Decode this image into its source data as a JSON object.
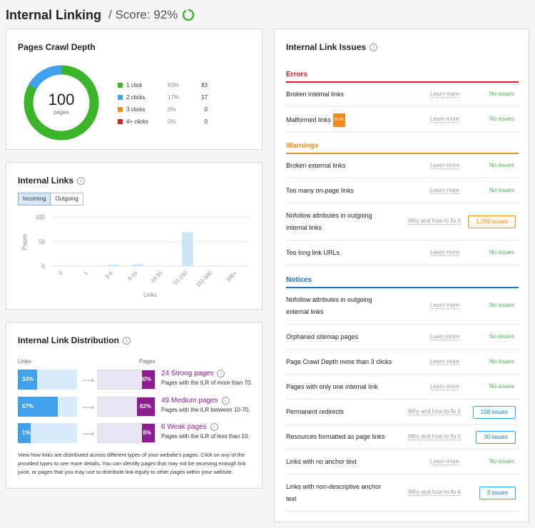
{
  "header": {
    "title": "Internal Linking",
    "score_label": "/ Score: 92%",
    "score_value": 92,
    "accent": "#3cb52b"
  },
  "crawl": {
    "title": "Pages Crawl Depth",
    "total": "100",
    "total_label": "pages",
    "items": [
      {
        "label": "1 click",
        "pct": "83%",
        "count": "83",
        "value": 83,
        "color": "#3cb52b"
      },
      {
        "label": "2 clicks",
        "pct": "17%",
        "count": "17",
        "value": 17,
        "color": "#3fa0ee"
      },
      {
        "label": "3 clicks",
        "pct": "0%",
        "count": "0",
        "value": 0,
        "color": "#f08c1e"
      },
      {
        "label": "4+ clicks",
        "pct": "0%",
        "count": "0",
        "value": 0,
        "color": "#d92020"
      }
    ]
  },
  "links": {
    "title": "Internal Links",
    "tabs": [
      {
        "label": "Incoming",
        "active": true
      },
      {
        "label": "Outgoing",
        "active": false
      }
    ],
    "chart_data": {
      "type": "bar",
      "categories": [
        "0",
        "1",
        "2-5",
        "6-15",
        "16-50",
        "51-150",
        "151-500",
        "500+"
      ],
      "values": [
        0,
        0,
        3,
        4,
        0,
        69,
        0,
        0
      ],
      "xlabel": "Links",
      "ylabel": "Pages",
      "ylim": [
        0,
        100
      ],
      "yticks": [
        "0",
        "50",
        "100"
      ],
      "grid": true,
      "color": "#cde5f7"
    }
  },
  "distribution": {
    "title": "Internal Link Distribution",
    "links_head": "Links",
    "pages_head": "Pages",
    "rows": [
      {
        "links_pct": "33%",
        "links_value": 33,
        "pages_pct": "30%",
        "pages_value": 30,
        "title": "24 Strong pages",
        "desc": "Pages with the ILR of more than 70."
      },
      {
        "links_pct": "67%",
        "links_value": 67,
        "pages_pct": "62%",
        "pages_value": 62,
        "title": "49 Medium pages",
        "desc": "Pages with the ILR between 10-70."
      },
      {
        "links_pct": "1%",
        "links_value": 1,
        "pages_pct": "8%",
        "pages_value": 8,
        "title": "6 Weak pages",
        "desc": "Pages with the ILR of less than 10."
      }
    ],
    "note": "View how links are distributed across different types of your website's pages. Click on any of the provided types to see more details. You can identify pages that may not be receiving enough link juice, or pages that you may use to distribute link equity to other pages within your website."
  },
  "issues": {
    "title": "Internal Link Issues",
    "sections": {
      "errors": "Errors",
      "warnings": "Warnings",
      "notices": "Notices"
    },
    "beta_label": "BETA",
    "rows": [
      {
        "name": "Broken internal links",
        "action": "Learn more",
        "status": "No issues"
      },
      {
        "name": "Malformed links",
        "action": "Learn more",
        "status": "No issues"
      },
      {
        "name": "Broken external links",
        "action": "Learn more",
        "status": "No issues"
      },
      {
        "name": "Too many on-page links",
        "action": "Learn more",
        "status": "No issues"
      },
      {
        "name": "Nofollow attributes in outgoing internal links",
        "action": "Why and how to fix it",
        "status": "1,259 issues"
      },
      {
        "name": "Too long link URLs",
        "action": "Learn more",
        "status": "No issues"
      },
      {
        "name": "Nofollow attributes in outgoing external links",
        "action": "Learn more",
        "status": "No issues"
      },
      {
        "name": "Orphaned sitemap pages",
        "action": "Learn more",
        "status": "No issues"
      },
      {
        "name": "Page Crawl Depth more than 3 clicks",
        "action": "Learn more",
        "status": "No issues"
      },
      {
        "name": "Pages with only one internal link",
        "action": "Learn more",
        "status": "No issues"
      },
      {
        "name": "Permanent redirects",
        "action": "Why and how to fix it",
        "status": "158 issues"
      },
      {
        "name": "Resources formatted as page links",
        "action": "Why and how to fix it",
        "status": "30 issues"
      },
      {
        "name": "Links with no anchor text",
        "action": "Learn more",
        "status": "No issues"
      },
      {
        "name": "Links with non-descriptive anchor text",
        "action": "Why and how to fix it",
        "status": "3 issues"
      }
    ]
  }
}
